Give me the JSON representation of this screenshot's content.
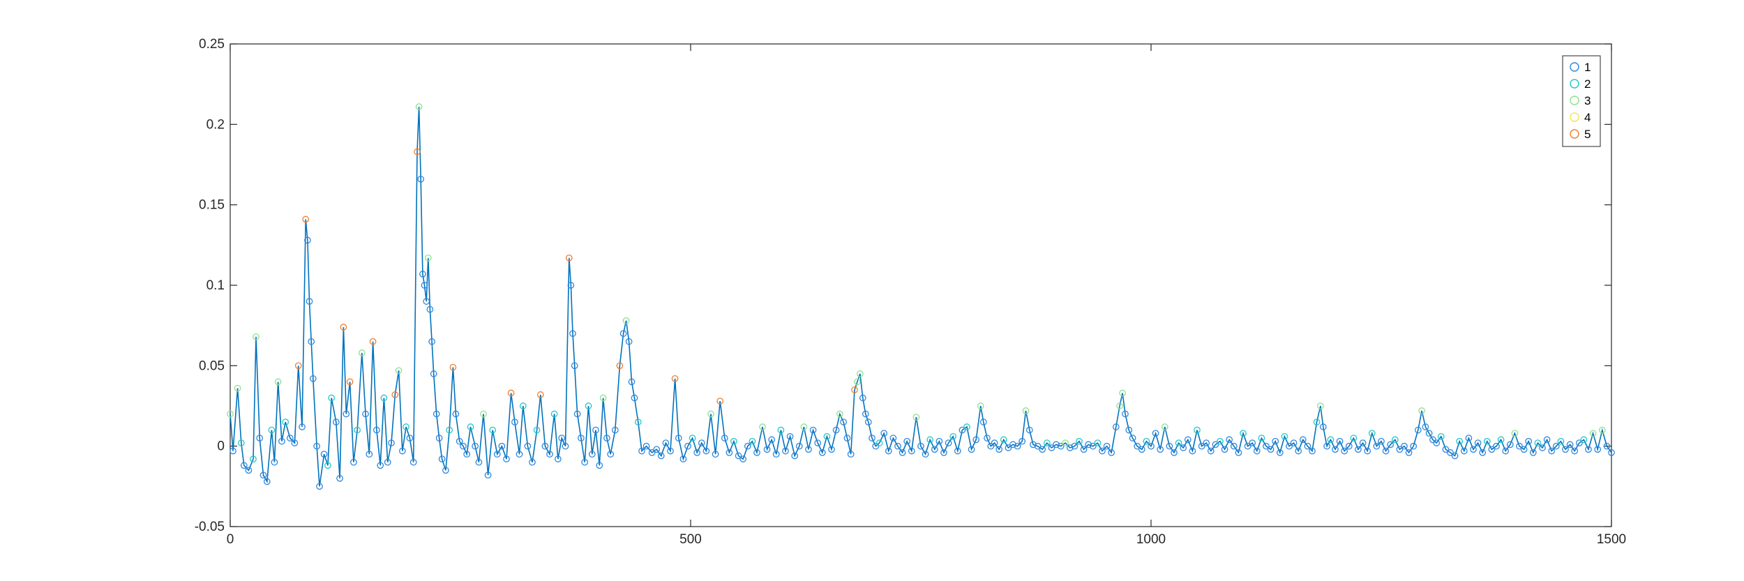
{
  "chart_data": {
    "type": "line",
    "title": "",
    "xlabel": "",
    "ylabel": "",
    "xlim": [
      0,
      1500
    ],
    "ylim": [
      -0.05,
      0.25
    ],
    "xticks": [
      0,
      500,
      1000,
      1500
    ],
    "xtick_labels": [
      "0",
      "500",
      "1000",
      "1500"
    ],
    "yticks": [
      -0.05,
      0,
      0.05,
      0.1,
      0.15,
      0.2,
      0.25
    ],
    "ytick_labels": [
      "-0.05",
      "0",
      "0.05",
      "0.1",
      "0.15",
      "0.2",
      "0.25"
    ],
    "grid": false,
    "legend_position": "top-right",
    "line_color": "#0072BD",
    "legend": [
      {
        "name": "1",
        "color": "#2E86DE"
      },
      {
        "name": "2",
        "color": "#1FC7C7"
      },
      {
        "name": "3",
        "color": "#8EE08E"
      },
      {
        "name": "4",
        "color": "#F2E35A"
      },
      {
        "name": "5",
        "color": "#F07D2E"
      }
    ],
    "series_points": [
      [
        0,
        0.02,
        3
      ],
      [
        3,
        -0.003,
        1
      ],
      [
        8,
        0.036,
        3
      ],
      [
        12,
        0.002,
        2
      ],
      [
        15,
        -0.012,
        1
      ],
      [
        20,
        -0.015,
        1
      ],
      [
        25,
        -0.008,
        2
      ],
      [
        28,
        0.068,
        3
      ],
      [
        32,
        0.005,
        1
      ],
      [
        36,
        -0.018,
        1
      ],
      [
        40,
        -0.022,
        1
      ],
      [
        45,
        0.01,
        2
      ],
      [
        48,
        -0.01,
        1
      ],
      [
        52,
        0.04,
        3
      ],
      [
        56,
        0.003,
        1
      ],
      [
        60,
        0.015,
        2
      ],
      [
        65,
        0.005,
        1
      ],
      [
        70,
        0.002,
        1
      ],
      [
        74,
        0.05,
        5
      ],
      [
        78,
        0.012,
        1
      ],
      [
        82,
        0.141,
        5
      ],
      [
        84,
        0.128,
        1
      ],
      [
        86,
        0.09,
        1
      ],
      [
        88,
        0.065,
        1
      ],
      [
        90,
        0.042,
        1
      ],
      [
        94,
        0.0,
        1
      ],
      [
        97,
        -0.025,
        1
      ],
      [
        102,
        -0.005,
        1
      ],
      [
        106,
        -0.012,
        2
      ],
      [
        110,
        0.03,
        2
      ],
      [
        115,
        0.015,
        1
      ],
      [
        119,
        -0.02,
        1
      ],
      [
        123,
        0.074,
        5
      ],
      [
        126,
        0.02,
        1
      ],
      [
        130,
        0.04,
        5
      ],
      [
        134,
        -0.01,
        1
      ],
      [
        138,
        0.01,
        2
      ],
      [
        143,
        0.058,
        3
      ],
      [
        147,
        0.02,
        1
      ],
      [
        151,
        -0.005,
        1
      ],
      [
        155,
        0.065,
        5
      ],
      [
        159,
        0.01,
        1
      ],
      [
        163,
        -0.012,
        1
      ],
      [
        167,
        0.03,
        2
      ],
      [
        171,
        -0.01,
        1
      ],
      [
        175,
        0.002,
        1
      ],
      [
        179,
        0.032,
        5
      ],
      [
        183,
        0.047,
        3
      ],
      [
        187,
        -0.003,
        1
      ],
      [
        191,
        0.012,
        2
      ],
      [
        195,
        0.005,
        1
      ],
      [
        199,
        -0.01,
        1
      ],
      [
        203,
        0.183,
        5
      ],
      [
        205,
        0.211,
        3
      ],
      [
        207,
        0.166,
        1
      ],
      [
        209,
        0.107,
        1
      ],
      [
        211,
        0.1,
        1
      ],
      [
        213,
        0.09,
        1
      ],
      [
        215,
        0.117,
        3
      ],
      [
        217,
        0.085,
        1
      ],
      [
        219,
        0.065,
        1
      ],
      [
        221,
        0.045,
        1
      ],
      [
        224,
        0.02,
        1
      ],
      [
        227,
        0.005,
        1
      ],
      [
        230,
        -0.008,
        1
      ],
      [
        234,
        -0.015,
        1
      ],
      [
        238,
        0.01,
        2
      ],
      [
        242,
        0.049,
        5
      ],
      [
        245,
        0.02,
        1
      ],
      [
        249,
        0.003,
        1
      ],
      [
        253,
        0.0,
        1
      ],
      [
        257,
        -0.005,
        1
      ],
      [
        261,
        0.012,
        2
      ],
      [
        266,
        0.0,
        1
      ],
      [
        270,
        -0.01,
        1
      ],
      [
        275,
        0.02,
        3
      ],
      [
        280,
        -0.018,
        1
      ],
      [
        285,
        0.01,
        2
      ],
      [
        290,
        -0.005,
        1
      ],
      [
        295,
        0.0,
        1
      ],
      [
        300,
        -0.008,
        1
      ],
      [
        305,
        0.033,
        5
      ],
      [
        309,
        0.015,
        1
      ],
      [
        314,
        -0.005,
        1
      ],
      [
        318,
        0.025,
        2
      ],
      [
        323,
        0.0,
        1
      ],
      [
        328,
        -0.01,
        1
      ],
      [
        333,
        0.01,
        2
      ],
      [
        337,
        0.032,
        5
      ],
      [
        342,
        0.0,
        1
      ],
      [
        347,
        -0.005,
        1
      ],
      [
        352,
        0.02,
        2
      ],
      [
        356,
        -0.008,
        1
      ],
      [
        360,
        0.005,
        1
      ],
      [
        364,
        0.0,
        1
      ],
      [
        368,
        0.117,
        5
      ],
      [
        370,
        0.1,
        1
      ],
      [
        372,
        0.07,
        1
      ],
      [
        374,
        0.05,
        1
      ],
      [
        377,
        0.02,
        1
      ],
      [
        381,
        0.005,
        1
      ],
      [
        385,
        -0.01,
        1
      ],
      [
        389,
        0.025,
        2
      ],
      [
        393,
        -0.005,
        1
      ],
      [
        397,
        0.01,
        1
      ],
      [
        401,
        -0.012,
        1
      ],
      [
        405,
        0.03,
        3
      ],
      [
        409,
        0.005,
        1
      ],
      [
        413,
        -0.005,
        1
      ],
      [
        418,
        0.01,
        1
      ],
      [
        423,
        0.05,
        5
      ],
      [
        427,
        0.07,
        1
      ],
      [
        430,
        0.078,
        3
      ],
      [
        433,
        0.065,
        1
      ],
      [
        436,
        0.04,
        1
      ],
      [
        439,
        0.03,
        1
      ],
      [
        443,
        0.015,
        2
      ],
      [
        447,
        -0.003,
        1
      ],
      [
        452,
        0.0,
        1
      ],
      [
        458,
        -0.004,
        1
      ],
      [
        463,
        -0.002,
        1
      ],
      [
        468,
        -0.006,
        1
      ],
      [
        473,
        0.002,
        1
      ],
      [
        478,
        -0.003,
        1
      ],
      [
        483,
        0.042,
        5
      ],
      [
        487,
        0.005,
        1
      ],
      [
        492,
        -0.008,
        1
      ],
      [
        497,
        0.0,
        1
      ],
      [
        502,
        0.005,
        2
      ],
      [
        507,
        -0.004,
        1
      ],
      [
        512,
        0.002,
        1
      ],
      [
        517,
        -0.003,
        1
      ],
      [
        522,
        0.02,
        3
      ],
      [
        527,
        -0.005,
        1
      ],
      [
        532,
        0.028,
        5
      ],
      [
        537,
        0.005,
        1
      ],
      [
        542,
        -0.004,
        1
      ],
      [
        547,
        0.003,
        2
      ],
      [
        552,
        -0.006,
        1
      ],
      [
        557,
        -0.008,
        1
      ],
      [
        562,
        0.0,
        1
      ],
      [
        567,
        0.003,
        2
      ],
      [
        572,
        -0.004,
        1
      ],
      [
        578,
        0.012,
        3
      ],
      [
        583,
        -0.002,
        1
      ],
      [
        588,
        0.004,
        1
      ],
      [
        593,
        -0.005,
        1
      ],
      [
        598,
        0.01,
        2
      ],
      [
        603,
        -0.003,
        1
      ],
      [
        608,
        0.006,
        1
      ],
      [
        613,
        -0.006,
        1
      ],
      [
        618,
        0.0,
        1
      ],
      [
        623,
        0.012,
        3
      ],
      [
        628,
        -0.002,
        1
      ],
      [
        633,
        0.01,
        1
      ],
      [
        638,
        0.002,
        1
      ],
      [
        643,
        -0.004,
        1
      ],
      [
        648,
        0.006,
        2
      ],
      [
        653,
        -0.002,
        1
      ],
      [
        658,
        0.01,
        1
      ],
      [
        662,
        0.02,
        3
      ],
      [
        666,
        0.015,
        1
      ],
      [
        670,
        0.005,
        1
      ],
      [
        674,
        -0.005,
        1
      ],
      [
        678,
        0.035,
        5
      ],
      [
        681,
        0.04,
        3
      ],
      [
        684,
        0.045,
        3
      ],
      [
        687,
        0.03,
        1
      ],
      [
        690,
        0.02,
        1
      ],
      [
        693,
        0.015,
        1
      ],
      [
        697,
        0.005,
        1
      ],
      [
        701,
        0.0,
        1
      ],
      [
        705,
        0.002,
        2
      ],
      [
        710,
        0.008,
        1
      ],
      [
        715,
        -0.003,
        1
      ],
      [
        720,
        0.005,
        1
      ],
      [
        725,
        0.0,
        1
      ],
      [
        730,
        -0.004,
        1
      ],
      [
        735,
        0.003,
        1
      ],
      [
        740,
        -0.003,
        1
      ],
      [
        745,
        0.018,
        3
      ],
      [
        750,
        0.0,
        1
      ],
      [
        755,
        -0.005,
        1
      ],
      [
        760,
        0.004,
        2
      ],
      [
        765,
        -0.002,
        1
      ],
      [
        770,
        0.003,
        1
      ],
      [
        775,
        -0.004,
        1
      ],
      [
        780,
        0.002,
        1
      ],
      [
        785,
        0.006,
        2
      ],
      [
        790,
        -0.003,
        1
      ],
      [
        795,
        0.01,
        1
      ],
      [
        800,
        0.012,
        2
      ],
      [
        805,
        -0.002,
        1
      ],
      [
        810,
        0.004,
        1
      ],
      [
        815,
        0.025,
        3
      ],
      [
        818,
        0.015,
        1
      ],
      [
        822,
        0.005,
        1
      ],
      [
        826,
        0.0,
        1
      ],
      [
        830,
        0.002,
        1
      ],
      [
        835,
        -0.002,
        1
      ],
      [
        840,
        0.004,
        2
      ],
      [
        845,
        -0.001,
        1
      ],
      [
        850,
        0.001,
        1
      ],
      [
        855,
        0.0,
        1
      ],
      [
        860,
        0.003,
        1
      ],
      [
        864,
        0.022,
        3
      ],
      [
        868,
        0.01,
        1
      ],
      [
        872,
        0.001,
        1
      ],
      [
        877,
        0.0,
        1
      ],
      [
        882,
        -0.002,
        1
      ],
      [
        887,
        0.002,
        2
      ],
      [
        892,
        -0.001,
        1
      ],
      [
        897,
        0.001,
        1
      ],
      [
        902,
        0.0,
        1
      ],
      [
        907,
        0.002,
        3
      ],
      [
        912,
        -0.001,
        1
      ],
      [
        917,
        0.0,
        1
      ],
      [
        922,
        0.003,
        2
      ],
      [
        927,
        -0.002,
        1
      ],
      [
        932,
        0.001,
        1
      ],
      [
        937,
        0.0,
        1
      ],
      [
        942,
        0.002,
        2
      ],
      [
        947,
        -0.003,
        1
      ],
      [
        952,
        0.0,
        1
      ],
      [
        957,
        -0.004,
        1
      ],
      [
        962,
        0.012,
        1
      ],
      [
        966,
        0.025,
        3
      ],
      [
        969,
        0.033,
        3
      ],
      [
        972,
        0.02,
        1
      ],
      [
        976,
        0.01,
        1
      ],
      [
        980,
        0.005,
        1
      ],
      [
        985,
        0.0,
        1
      ],
      [
        990,
        -0.002,
        1
      ],
      [
        995,
        0.003,
        2
      ],
      [
        1000,
        0.0,
        1
      ],
      [
        1005,
        0.008,
        1
      ],
      [
        1010,
        -0.002,
        1
      ],
      [
        1015,
        0.012,
        3
      ],
      [
        1020,
        0.0,
        1
      ],
      [
        1025,
        -0.004,
        1
      ],
      [
        1030,
        0.002,
        2
      ],
      [
        1035,
        -0.001,
        1
      ],
      [
        1040,
        0.004,
        1
      ],
      [
        1045,
        -0.003,
        1
      ],
      [
        1050,
        0.01,
        2
      ],
      [
        1055,
        0.0,
        1
      ],
      [
        1060,
        0.002,
        1
      ],
      [
        1065,
        -0.003,
        1
      ],
      [
        1070,
        0.001,
        1
      ],
      [
        1075,
        0.003,
        2
      ],
      [
        1080,
        -0.002,
        1
      ],
      [
        1085,
        0.004,
        1
      ],
      [
        1090,
        0.0,
        1
      ],
      [
        1095,
        -0.004,
        1
      ],
      [
        1100,
        0.008,
        2
      ],
      [
        1105,
        0.0,
        1
      ],
      [
        1110,
        0.002,
        1
      ],
      [
        1115,
        -0.003,
        1
      ],
      [
        1120,
        0.005,
        2
      ],
      [
        1125,
        0.0,
        1
      ],
      [
        1130,
        -0.002,
        1
      ],
      [
        1135,
        0.003,
        1
      ],
      [
        1140,
        -0.004,
        1
      ],
      [
        1145,
        0.006,
        2
      ],
      [
        1150,
        0.0,
        1
      ],
      [
        1155,
        0.002,
        1
      ],
      [
        1160,
        -0.003,
        1
      ],
      [
        1165,
        0.004,
        1
      ],
      [
        1170,
        0.0,
        1
      ],
      [
        1175,
        -0.003,
        1
      ],
      [
        1180,
        0.015,
        2
      ],
      [
        1184,
        0.025,
        3
      ],
      [
        1187,
        0.012,
        1
      ],
      [
        1191,
        0.0,
        1
      ],
      [
        1195,
        0.004,
        2
      ],
      [
        1200,
        -0.002,
        1
      ],
      [
        1205,
        0.003,
        1
      ],
      [
        1210,
        -0.003,
        1
      ],
      [
        1215,
        0.0,
        1
      ],
      [
        1220,
        0.005,
        2
      ],
      [
        1225,
        -0.002,
        1
      ],
      [
        1230,
        0.002,
        1
      ],
      [
        1235,
        -0.003,
        1
      ],
      [
        1240,
        0.008,
        2
      ],
      [
        1245,
        0.0,
        1
      ],
      [
        1250,
        0.003,
        1
      ],
      [
        1255,
        -0.003,
        1
      ],
      [
        1260,
        0.001,
        1
      ],
      [
        1265,
        0.004,
        2
      ],
      [
        1270,
        -0.002,
        1
      ],
      [
        1275,
        0.0,
        1
      ],
      [
        1280,
        -0.004,
        1
      ],
      [
        1285,
        0.0,
        1
      ],
      [
        1290,
        0.01,
        1
      ],
      [
        1294,
        0.022,
        3
      ],
      [
        1298,
        0.012,
        1
      ],
      [
        1302,
        0.008,
        1
      ],
      [
        1306,
        0.004,
        1
      ],
      [
        1310,
        0.002,
        1
      ],
      [
        1315,
        0.006,
        2
      ],
      [
        1320,
        -0.002,
        1
      ],
      [
        1325,
        -0.004,
        1
      ],
      [
        1330,
        -0.006,
        1
      ],
      [
        1335,
        0.003,
        2
      ],
      [
        1340,
        -0.003,
        1
      ],
      [
        1345,
        0.005,
        1
      ],
      [
        1350,
        -0.002,
        1
      ],
      [
        1355,
        0.002,
        1
      ],
      [
        1360,
        -0.004,
        1
      ],
      [
        1365,
        0.003,
        2
      ],
      [
        1370,
        -0.002,
        1
      ],
      [
        1375,
        0.0,
        1
      ],
      [
        1380,
        0.004,
        2
      ],
      [
        1385,
        -0.003,
        1
      ],
      [
        1390,
        0.001,
        1
      ],
      [
        1395,
        0.008,
        3
      ],
      [
        1400,
        0.0,
        1
      ],
      [
        1405,
        -0.002,
        1
      ],
      [
        1410,
        0.003,
        1
      ],
      [
        1415,
        -0.004,
        1
      ],
      [
        1420,
        0.002,
        2
      ],
      [
        1425,
        -0.001,
        1
      ],
      [
        1430,
        0.004,
        1
      ],
      [
        1435,
        -0.003,
        1
      ],
      [
        1440,
        0.0,
        1
      ],
      [
        1445,
        0.003,
        2
      ],
      [
        1450,
        -0.002,
        1
      ],
      [
        1455,
        0.001,
        1
      ],
      [
        1460,
        -0.003,
        1
      ],
      [
        1465,
        0.002,
        1
      ],
      [
        1470,
        0.004,
        2
      ],
      [
        1475,
        -0.002,
        1
      ],
      [
        1480,
        0.008,
        3
      ],
      [
        1485,
        -0.002,
        1
      ],
      [
        1490,
        0.01,
        3
      ],
      [
        1495,
        0.0,
        1
      ],
      [
        1500,
        -0.004,
        1
      ]
    ]
  }
}
